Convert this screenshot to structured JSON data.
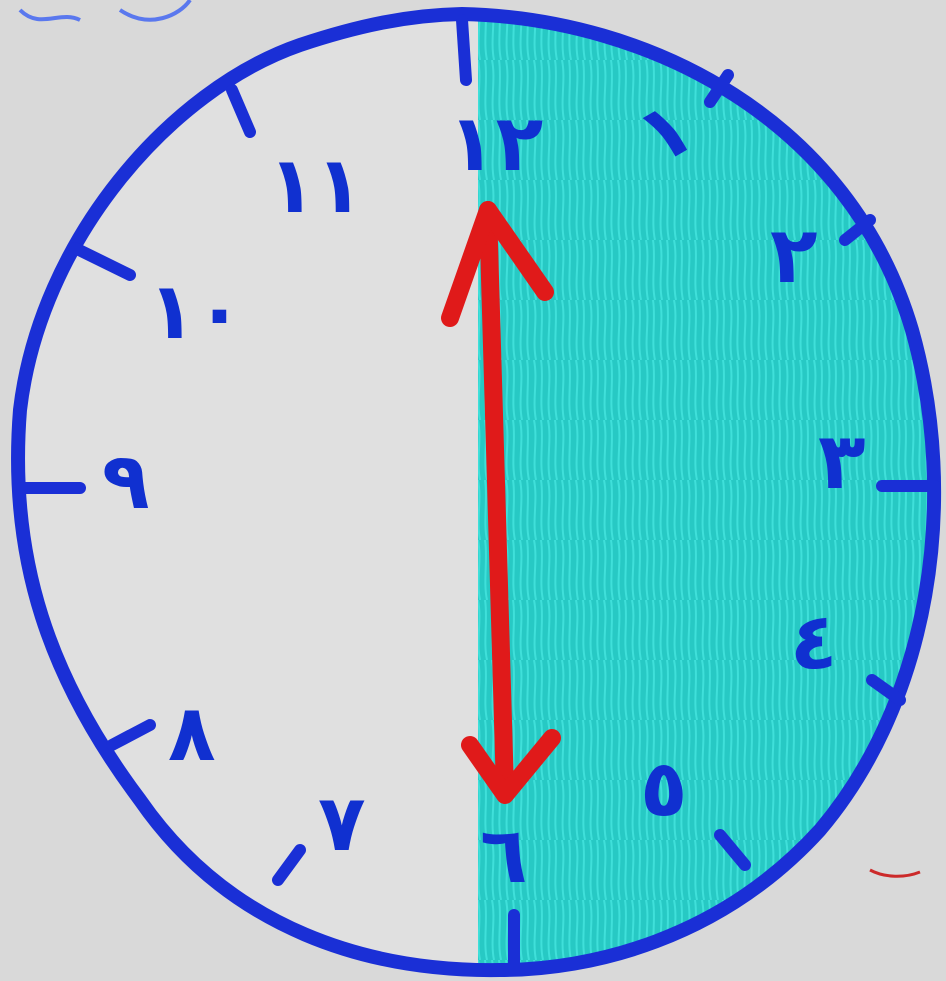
{
  "diagram": {
    "colors": {
      "background": "#d9d9d9",
      "clock_outline": "#1a2fd6",
      "shaded_half": "#27c9c4",
      "arrow": "#e01a1a",
      "numerals": "#1030d0"
    },
    "numerals": {
      "n12": "١٢",
      "n1": "١",
      "n2": "٢",
      "n3": "٣",
      "n4": "٤",
      "n5": "٥",
      "n6": "٦",
      "n7": "٧",
      "n8": "٨",
      "n9": "٩",
      "n10": "١٠",
      "n11": "١١"
    },
    "shaded_fraction": 0.5
  }
}
